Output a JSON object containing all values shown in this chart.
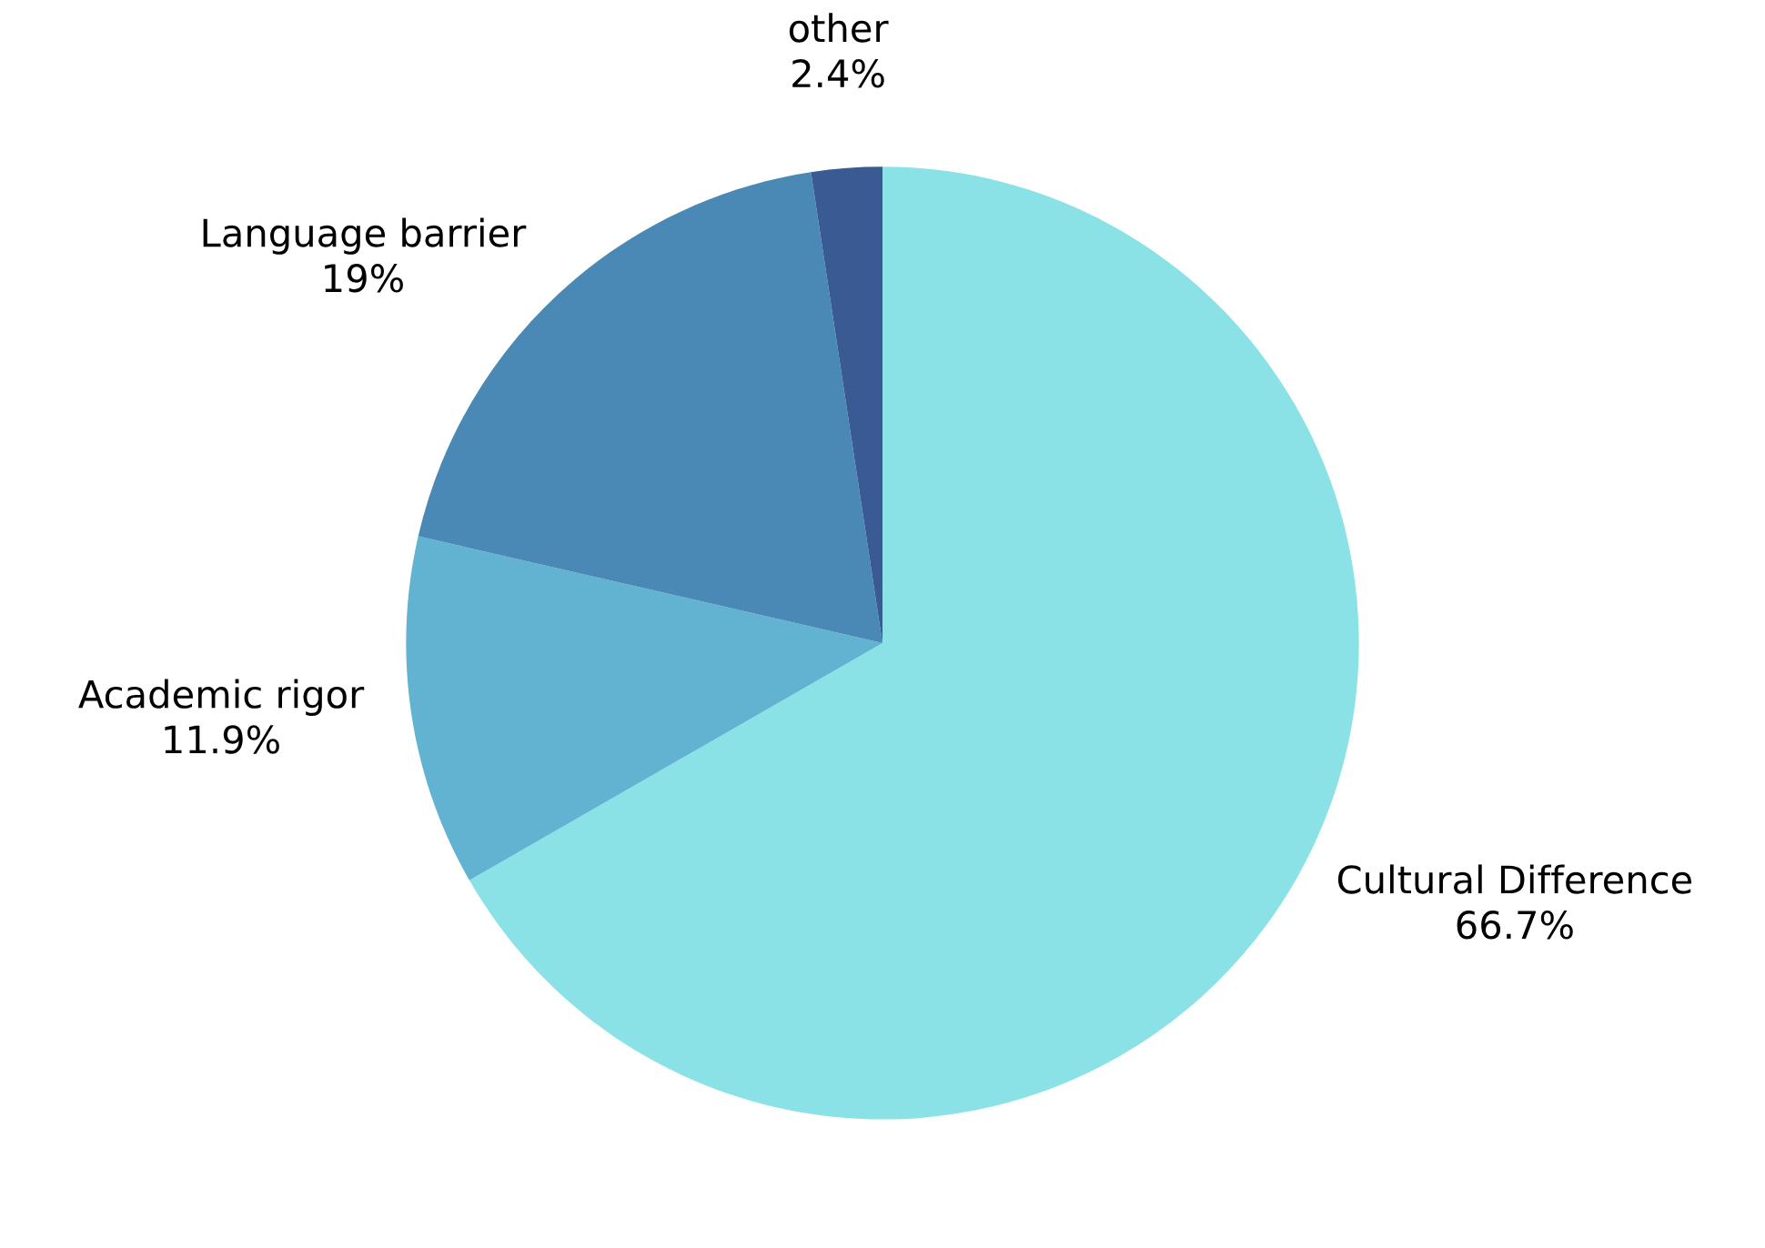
{
  "chart_data": {
    "type": "pie",
    "categories": [
      "Cultural Difference",
      "Academic rigor",
      "Language barrier",
      "other"
    ],
    "values": [
      66.7,
      11.9,
      19,
      2.4
    ],
    "value_labels": [
      "66.7%",
      "11.9%",
      "19%",
      "2.4%"
    ],
    "colors": [
      "#8ae2e6",
      "#61b3d1",
      "#4a89b5",
      "#3a5a93"
    ]
  }
}
